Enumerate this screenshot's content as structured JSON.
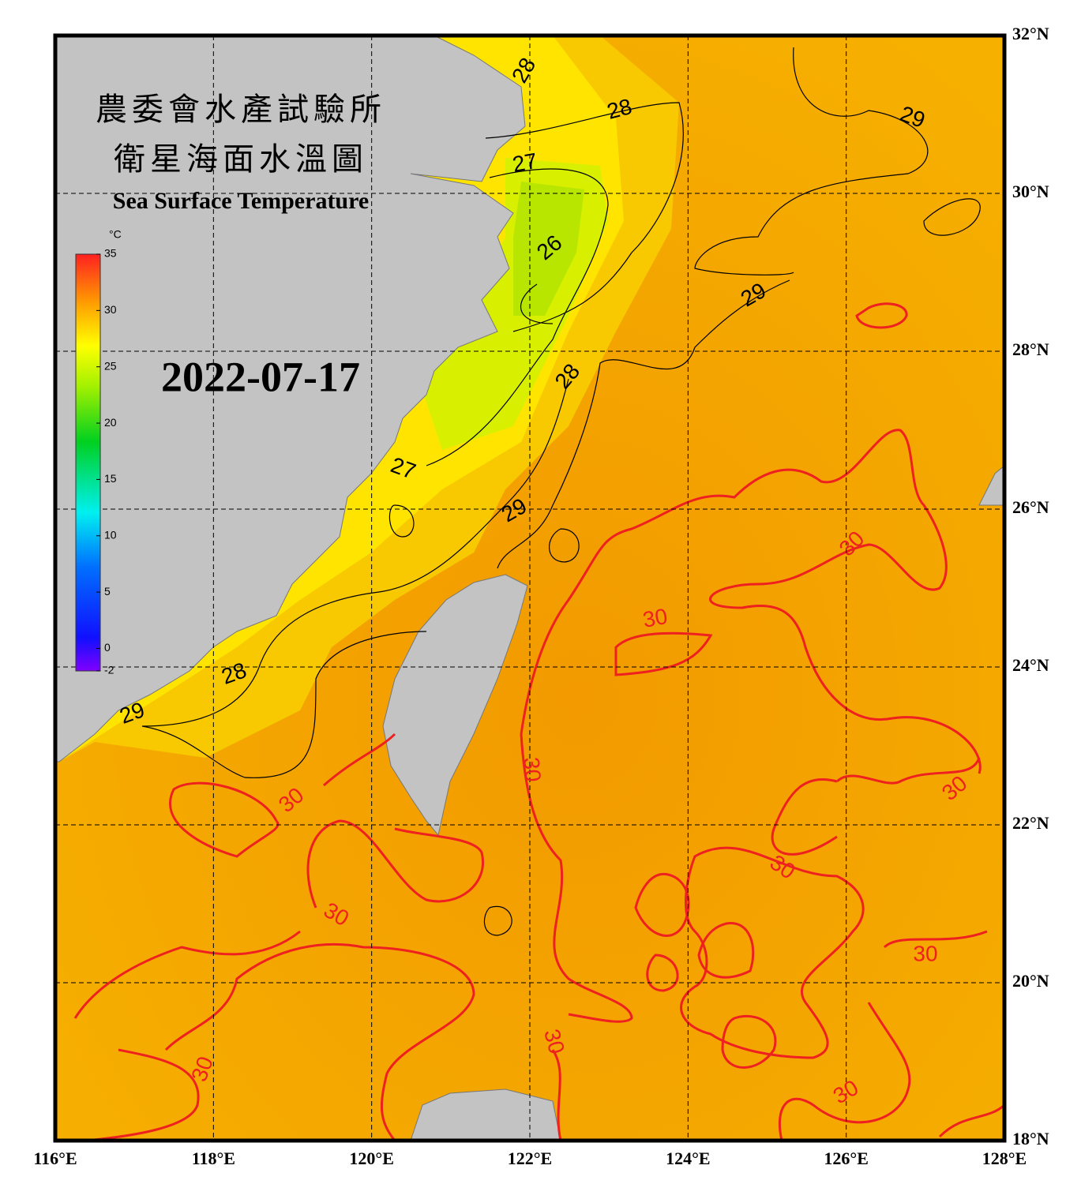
{
  "header": {
    "title_zh_line1": "農委會水產試驗所",
    "title_zh_line2": "衛星海面水溫圖",
    "title_en": "Sea Surface Temperature",
    "date": "2022-07-17"
  },
  "colorbar": {
    "unit": "°C",
    "range": [
      -2,
      35
    ],
    "ticks": [
      -2,
      0,
      5,
      10,
      15,
      20,
      25,
      30,
      35
    ]
  },
  "map": {
    "lon_range": [
      116,
      128
    ],
    "lat_range": [
      18,
      32
    ],
    "lon_ticks": [
      {
        "value": 116,
        "label": "116°E"
      },
      {
        "value": 118,
        "label": "118°E"
      },
      {
        "value": 120,
        "label": "120°E"
      },
      {
        "value": 122,
        "label": "122°E"
      },
      {
        "value": 124,
        "label": "124°E"
      },
      {
        "value": 126,
        "label": "126°E"
      },
      {
        "value": 128,
        "label": "128°E"
      }
    ],
    "lat_ticks": [
      {
        "value": 18,
        "label": "18°N"
      },
      {
        "value": 20,
        "label": "20°N"
      },
      {
        "value": 22,
        "label": "22°N"
      },
      {
        "value": 24,
        "label": "24°N"
      },
      {
        "value": 26,
        "label": "26°N"
      },
      {
        "value": 28,
        "label": "28°N"
      },
      {
        "value": 30,
        "label": "30°N"
      },
      {
        "value": 32,
        "label": "32°N"
      }
    ]
  },
  "contour_labels": [
    28,
    29,
    27,
    26,
    29,
    28,
    27,
    29,
    28,
    29,
    28,
    30,
    30,
    30,
    30,
    30,
    30,
    30,
    30,
    30,
    30,
    30
  ]
}
